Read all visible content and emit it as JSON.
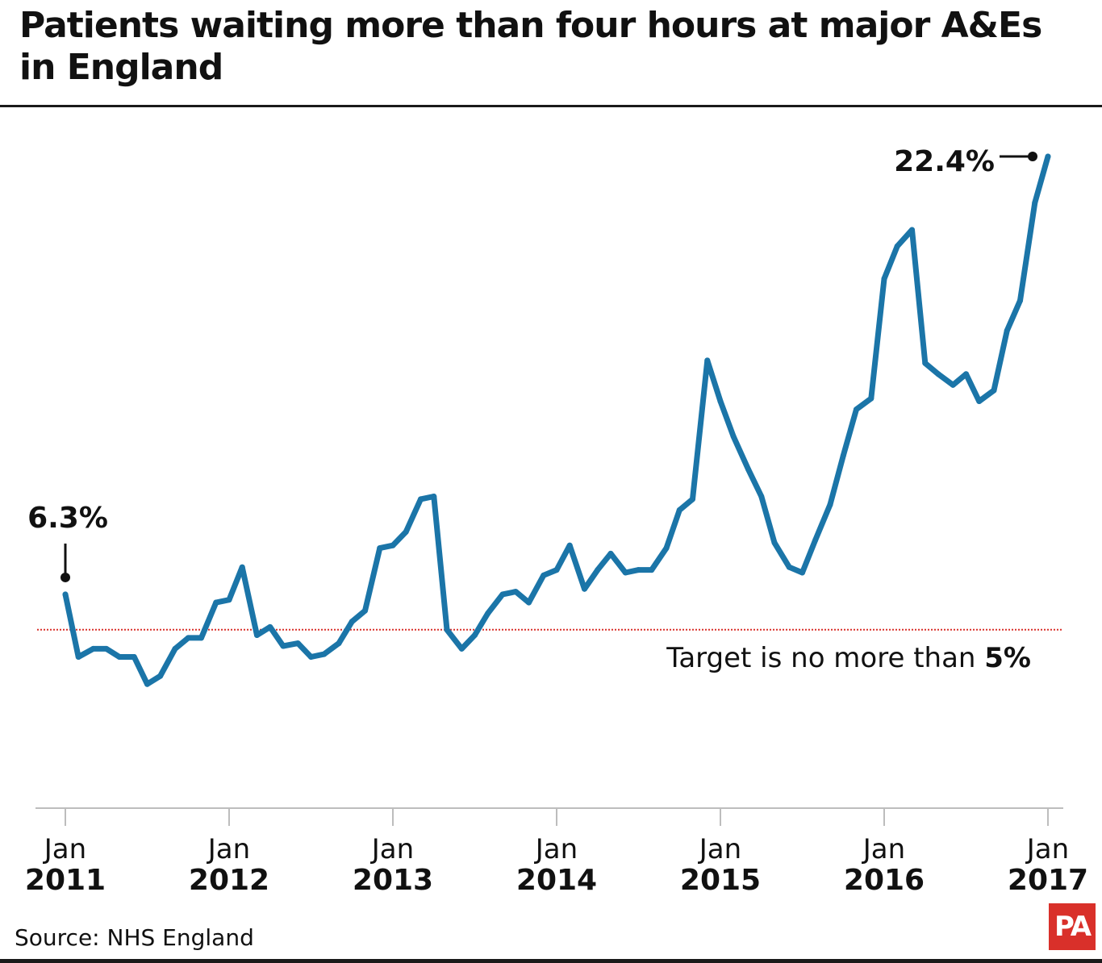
{
  "title": "Patients waiting more than four hours at major A&Es in England",
  "source": "Source: NHS England",
  "logo": "PA",
  "colors": {
    "line": "#1b75a8",
    "target": "#d9302a",
    "text": "#111111",
    "logo_bg": "#d9302a"
  },
  "chart_data": {
    "type": "line",
    "title": "Patients waiting more than four hours at major A&Es in England",
    "xlabel": "",
    "ylabel": "",
    "x_range": [
      2010.9,
      2017.15
    ],
    "ylim": [
      -1.5,
      24.0
    ],
    "grid": false,
    "legend": "none",
    "x_ticks": [
      {
        "x": 2011,
        "month": "Jan",
        "year": "2011"
      },
      {
        "x": 2012,
        "month": "Jan",
        "year": "2012"
      },
      {
        "x": 2013,
        "month": "Jan",
        "year": "2013"
      },
      {
        "x": 2014,
        "month": "Jan",
        "year": "2014"
      },
      {
        "x": 2015,
        "month": "Jan",
        "year": "2015"
      },
      {
        "x": 2016,
        "month": "Jan",
        "year": "2016"
      },
      {
        "x": 2017,
        "month": "Jan",
        "year": "2017"
      }
    ],
    "target": {
      "value": 5.0,
      "label_text": "Target is no more than ",
      "label_bold": "5%"
    },
    "annotations": [
      {
        "text": "6.3%",
        "x": 2011.0,
        "y": 6.3
      },
      {
        "text": "22.4%",
        "x": 2016.92,
        "y": 22.4
      }
    ],
    "series": [
      {
        "x": [
          2011.0,
          2011.08,
          2011.17,
          2011.25,
          2011.33,
          2011.42,
          2011.5,
          2011.58,
          2011.67,
          2011.75,
          2011.83,
          2011.92,
          2012.0,
          2012.08,
          2012.17,
          2012.25,
          2012.33,
          2012.42,
          2012.5,
          2012.58,
          2012.67,
          2012.75,
          2012.83,
          2012.92,
          2013.0,
          2013.08,
          2013.17,
          2013.25,
          2013.33,
          2013.42,
          2013.5,
          2013.58,
          2013.67,
          2013.75,
          2013.83,
          2013.92,
          2014.0,
          2014.08,
          2014.17,
          2014.25,
          2014.33,
          2014.42,
          2014.5,
          2014.58,
          2014.67,
          2014.75,
          2014.83,
          2014.92,
          2015.0,
          2015.08,
          2015.17,
          2015.25,
          2015.33,
          2015.42,
          2015.5,
          2015.58,
          2015.67,
          2015.75,
          2015.83,
          2015.92,
          2016.0,
          2016.08,
          2016.17,
          2016.25,
          2016.33,
          2016.42,
          2016.5,
          2016.58,
          2016.67,
          2016.75,
          2016.83,
          2016.92,
          2017.0
        ],
        "y": [
          6.3,
          4.0,
          4.3,
          4.3,
          4.0,
          4.0,
          3.0,
          3.3,
          4.3,
          4.7,
          4.7,
          6.0,
          6.1,
          7.3,
          4.8,
          5.1,
          4.4,
          4.5,
          4.0,
          4.1,
          4.5,
          5.3,
          5.7,
          8.0,
          8.1,
          8.6,
          9.8,
          9.9,
          5.0,
          4.3,
          4.8,
          5.6,
          6.3,
          6.4,
          6.0,
          7.0,
          7.2,
          8.1,
          6.5,
          7.2,
          7.8,
          7.1,
          7.2,
          7.2,
          8.0,
          9.4,
          9.8,
          14.9,
          13.4,
          12.1,
          10.9,
          9.9,
          8.2,
          7.3,
          7.1,
          8.3,
          9.6,
          11.4,
          13.1,
          13.5,
          17.9,
          19.1,
          19.7,
          14.8,
          14.4,
          14.0,
          14.4,
          13.4,
          13.8,
          16.0,
          17.1,
          20.7,
          22.4
        ]
      }
    ]
  }
}
